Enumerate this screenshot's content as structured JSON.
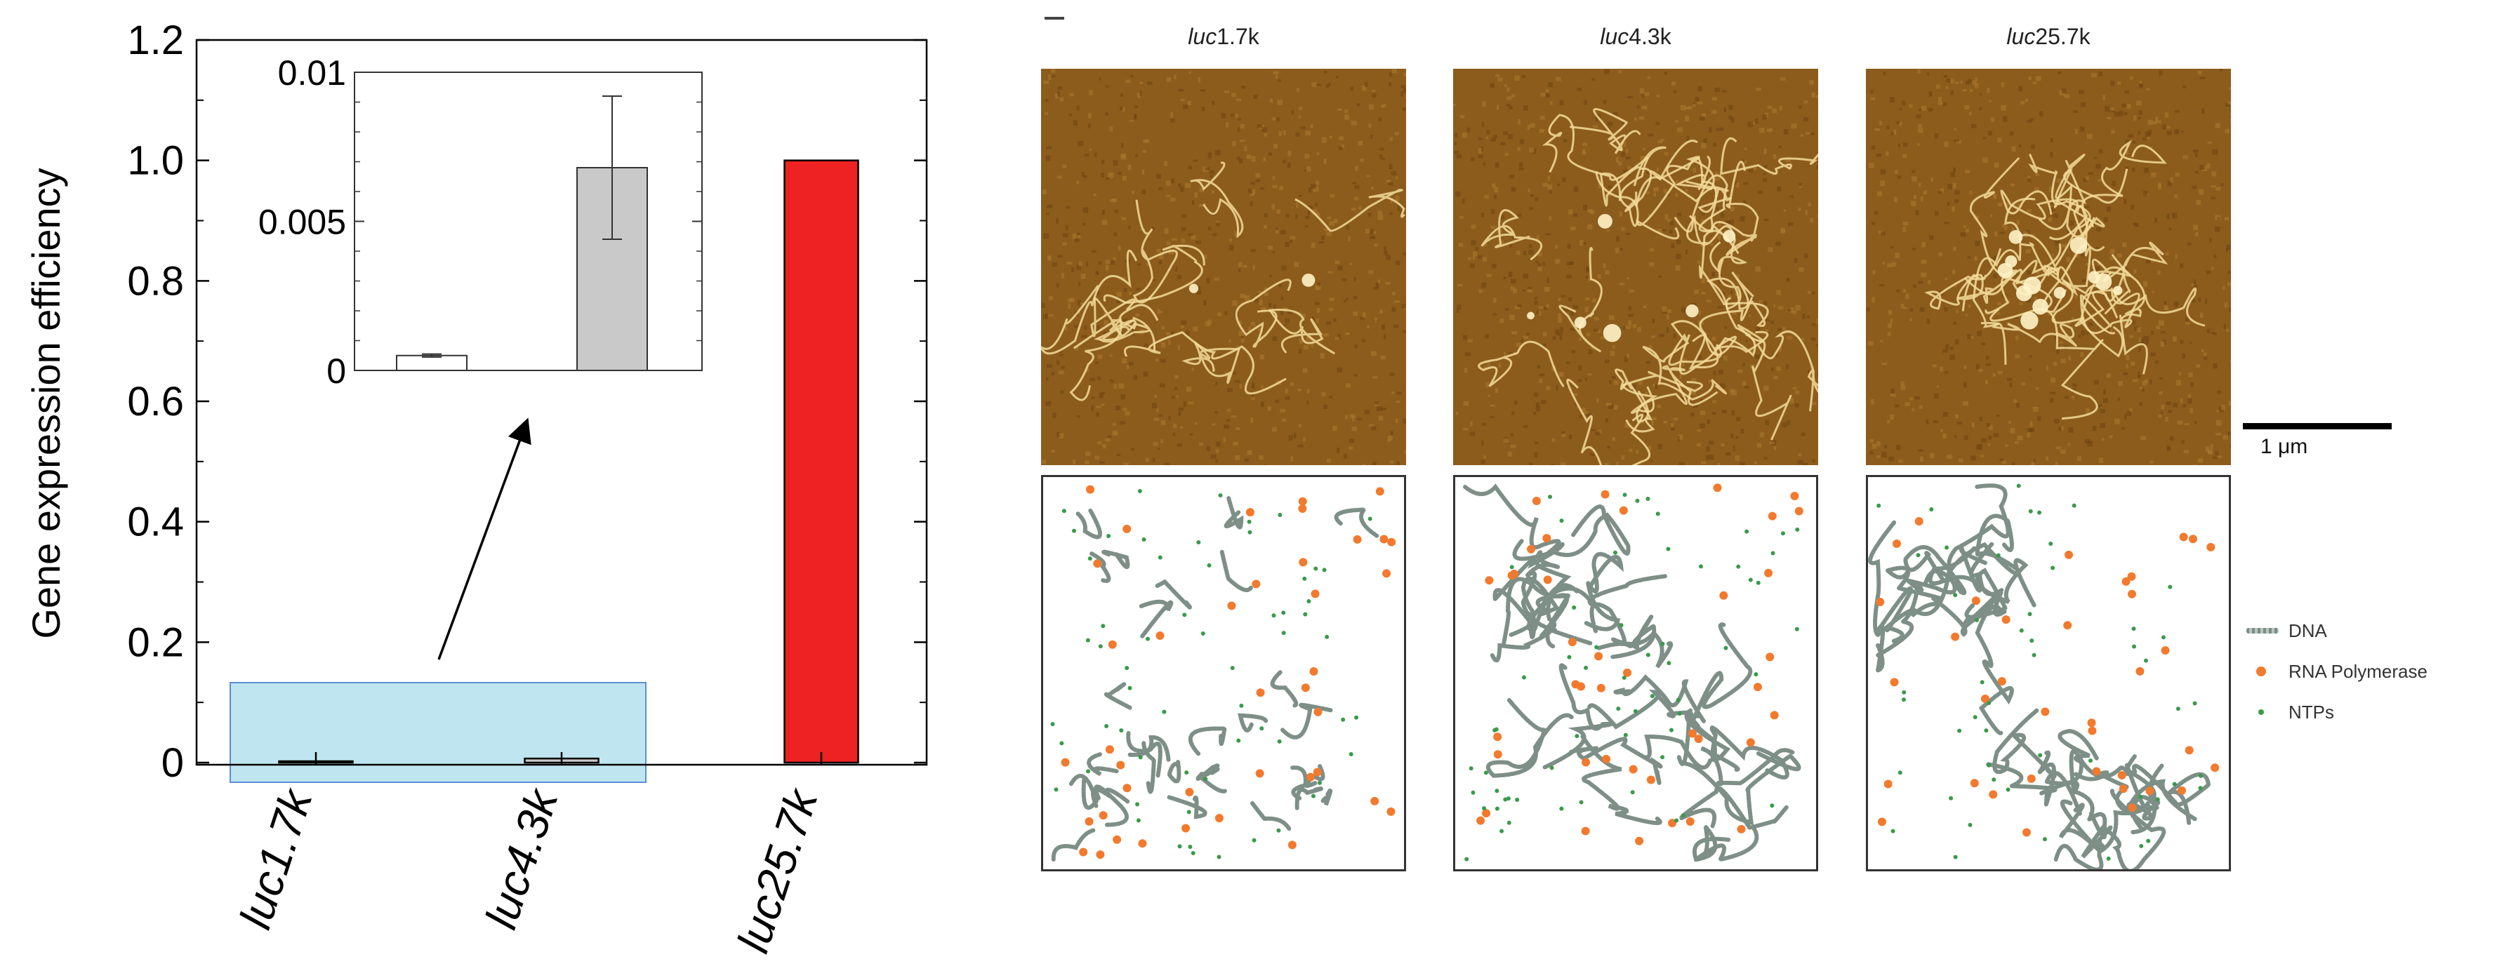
{
  "chart_data": [
    {
      "type": "bar",
      "categories": [
        "luc1.7k",
        "luc4.3k",
        "luc25.7k"
      ],
      "values": [
        0.0005,
        0.0068,
        1.0
      ],
      "colors": [
        "#ffffff",
        "#c9c9c9",
        "#ee2222"
      ],
      "ylabel": "Gene expression efficiency",
      "ylim": [
        0,
        1.2
      ],
      "yticks": [
        "0",
        "0.2",
        "0.4",
        "0.6",
        "0.8",
        "1.0",
        "1.2"
      ],
      "grid": false,
      "highlight": {
        "covers": [
          "luc1.7k",
          "luc4.3k"
        ],
        "color": "#bfe6f0"
      }
    },
    {
      "type": "bar",
      "categories": [
        "luc1.7k",
        "luc4.3k"
      ],
      "values": [
        0.0005,
        0.0068
      ],
      "error": [
        5e-05,
        0.0024
      ],
      "colors": [
        "#ffffff",
        "#c9c9c9"
      ],
      "ylim": [
        0,
        0.01
      ],
      "yticks": [
        "0",
        "0.005",
        "0.01"
      ],
      "placement": "inset"
    }
  ],
  "micrographs": {
    "labels": [
      {
        "italic": "luc",
        "rest": "1.7k"
      },
      {
        "italic": "luc",
        "rest": "4.3k"
      },
      {
        "italic": "luc",
        "rest": "25.7k"
      }
    ],
    "scale_label": "1 μm"
  },
  "legend": {
    "items": [
      {
        "label": "DNA",
        "icon": "dna-strand-icon"
      },
      {
        "label": "RNA Polymerase",
        "icon": "orange-dot-icon",
        "color": "#f27a2e"
      },
      {
        "label": "NTPs",
        "icon": "green-dot-icon",
        "color": "#3a9a4a"
      }
    ]
  }
}
